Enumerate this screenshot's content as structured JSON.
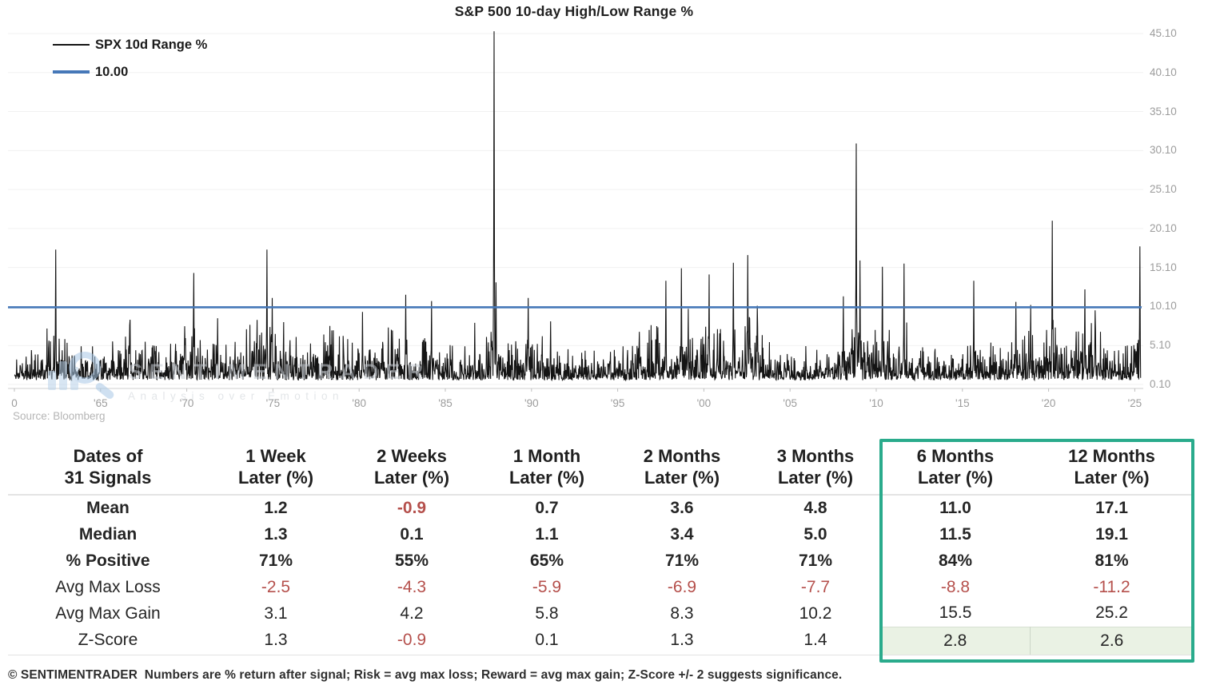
{
  "source": "Source: Bloomberg",
  "watermark": {
    "line1": "SENTIMENTRADER",
    "line2": "Analysis over Emotion"
  },
  "footer": "© SENTIMENTRADER  Numbers are % return after signal; Risk = avg max loss; Reward = avg max gain; Z-Score +/- 2 suggests significance.",
  "chart_data": {
    "type": "line",
    "title": "S&P 500 10-day High/Low Range %",
    "xlabel": "",
    "ylabel": "",
    "grid": true,
    "legend_position": "top-left",
    "x_range": [
      1960,
      2025.35
    ],
    "y_range": [
      0,
      46.5
    ],
    "y_ticks": [
      "0.10",
      "5.10",
      "10.10",
      "15.10",
      "20.10",
      "25.10",
      "30.10",
      "35.10",
      "40.10",
      "45.10"
    ],
    "x_tick_years": [
      1960,
      1965,
      1970,
      1975,
      1980,
      1985,
      1990,
      1995,
      2000,
      2005,
      2010,
      2015,
      2020,
      2025
    ],
    "x_tick_labels": [
      "0",
      "'65",
      "'70",
      "'75",
      "'80",
      "'85",
      "'90",
      "'95",
      "'00",
      "'05",
      "'10",
      "'15",
      "'20",
      "'25"
    ],
    "series": [
      {
        "name": "SPX 10d Range %",
        "color": "#141414"
      }
    ],
    "threshold": {
      "label": "10.00",
      "value": 10.0,
      "color": "#4678b8"
    },
    "seed": 11,
    "step": 0.022,
    "baseline": {
      "min": 0.35,
      "typical": 1.7
    },
    "major_peaks": [
      [
        1962.4,
        17.4
      ],
      [
        1966.7,
        8.4
      ],
      [
        1970.4,
        14.4
      ],
      [
        1971.8,
        8.6
      ],
      [
        1974.65,
        17.4
      ],
      [
        1974.95,
        11.2
      ],
      [
        1978.3,
        7.6
      ],
      [
        1980.2,
        9.4
      ],
      [
        1982.7,
        11.6
      ],
      [
        1984.2,
        10.8
      ],
      [
        1986.7,
        8.0
      ],
      [
        1987.83,
        45.4
      ],
      [
        1987.95,
        13.2
      ],
      [
        1989.8,
        11.2
      ],
      [
        1991.1,
        8.2
      ],
      [
        1997.8,
        13.4
      ],
      [
        1998.7,
        15.0
      ],
      [
        1999.1,
        9.8
      ],
      [
        2000.3,
        14.2
      ],
      [
        2001.72,
        15.7
      ],
      [
        2002.55,
        16.7
      ],
      [
        2003.1,
        10.2
      ],
      [
        2008.1,
        11.4
      ],
      [
        2008.85,
        31.0
      ],
      [
        2009.05,
        16.0
      ],
      [
        2010.35,
        15.2
      ],
      [
        2011.62,
        15.6
      ],
      [
        2015.65,
        13.4
      ],
      [
        2018.1,
        10.7
      ],
      [
        2018.95,
        10.3
      ],
      [
        2020.22,
        21.1
      ],
      [
        2022.1,
        12.3
      ],
      [
        2022.7,
        9.6
      ],
      [
        2025.3,
        17.8
      ]
    ],
    "volatility_clusters": [
      {
        "center": 1962.3,
        "width": 0.5,
        "amp": 2.3
      },
      {
        "center": 1966.6,
        "width": 0.8,
        "amp": 1.8
      },
      {
        "center": 1970.3,
        "width": 0.8,
        "amp": 2.0
      },
      {
        "center": 1974.7,
        "width": 1.4,
        "amp": 2.4
      },
      {
        "center": 1978.5,
        "width": 1.0,
        "amp": 1.6
      },
      {
        "center": 1980.9,
        "width": 1.6,
        "amp": 1.9
      },
      {
        "center": 1984.3,
        "width": 0.6,
        "amp": 1.6
      },
      {
        "center": 1987.9,
        "width": 0.5,
        "amp": 2.0
      },
      {
        "center": 1990.0,
        "width": 0.8,
        "amp": 1.7
      },
      {
        "center": 1997.0,
        "width": 1.2,
        "amp": 1.8
      },
      {
        "center": 1998.8,
        "width": 0.8,
        "amp": 1.9
      },
      {
        "center": 2000.8,
        "width": 2.2,
        "amp": 2.0
      },
      {
        "center": 2002.6,
        "width": 0.8,
        "amp": 2.1
      },
      {
        "center": 2008.9,
        "width": 1.1,
        "amp": 2.5
      },
      {
        "center": 2010.5,
        "width": 0.5,
        "amp": 1.8
      },
      {
        "center": 2011.7,
        "width": 0.8,
        "amp": 1.9
      },
      {
        "center": 2015.8,
        "width": 0.7,
        "amp": 1.6
      },
      {
        "center": 2018.5,
        "width": 0.8,
        "amp": 1.7
      },
      {
        "center": 2020.3,
        "width": 0.6,
        "amp": 2.0
      },
      {
        "center": 2022.3,
        "width": 1.0,
        "amp": 1.9
      },
      {
        "center": 2025.2,
        "width": 0.35,
        "amp": 1.7
      }
    ]
  },
  "table": {
    "header": [
      {
        "line1": "Dates of",
        "line2": "31 Signals"
      },
      {
        "line1": "1 Week",
        "line2": "Later (%)"
      },
      {
        "line1": "2 Weeks",
        "line2": "Later (%)"
      },
      {
        "line1": "1 Month",
        "line2": "Later (%)"
      },
      {
        "line1": "2 Months",
        "line2": "Later (%)"
      },
      {
        "line1": "3 Months",
        "line2": "Later (%)"
      },
      {
        "line1": "6 Months",
        "line2": "Later (%)"
      },
      {
        "line1": "12 Months",
        "line2": "Later (%)"
      }
    ],
    "rows": [
      {
        "label": "Mean",
        "bold": true,
        "values": [
          "1.2",
          "-0.9",
          "0.7",
          "3.6",
          "4.8",
          "11.0",
          "17.1"
        ]
      },
      {
        "label": "Median",
        "bold": true,
        "values": [
          "1.3",
          "0.1",
          "1.1",
          "3.4",
          "5.0",
          "11.5",
          "19.1"
        ]
      },
      {
        "label": "% Positive",
        "bold": true,
        "values": [
          "71%",
          "55%",
          "65%",
          "71%",
          "71%",
          "84%",
          "81%"
        ]
      },
      {
        "label": "Avg Max Loss",
        "bold": false,
        "values": [
          "-2.5",
          "-4.3",
          "-5.9",
          "-6.9",
          "-7.7",
          "-8.8",
          "-11.2"
        ]
      },
      {
        "label": "Avg Max Gain",
        "bold": false,
        "values": [
          "3.1",
          "4.2",
          "5.8",
          "8.3",
          "10.2",
          "15.5",
          "25.2"
        ]
      },
      {
        "label": "Z-Score",
        "bold": false,
        "values": [
          "1.3",
          "-0.9",
          "0.1",
          "1.3",
          "1.4",
          "2.8",
          "2.6"
        ],
        "highlight_cols": [
          5,
          6
        ]
      }
    ],
    "highlight_box_columns": [
      "6 Months Later (%)",
      "12 Months Later (%)"
    ],
    "colors": {
      "negative": "#b5504c",
      "highlight_border": "#2aab8c",
      "highlight_fill": "#eaf2e4"
    }
  }
}
